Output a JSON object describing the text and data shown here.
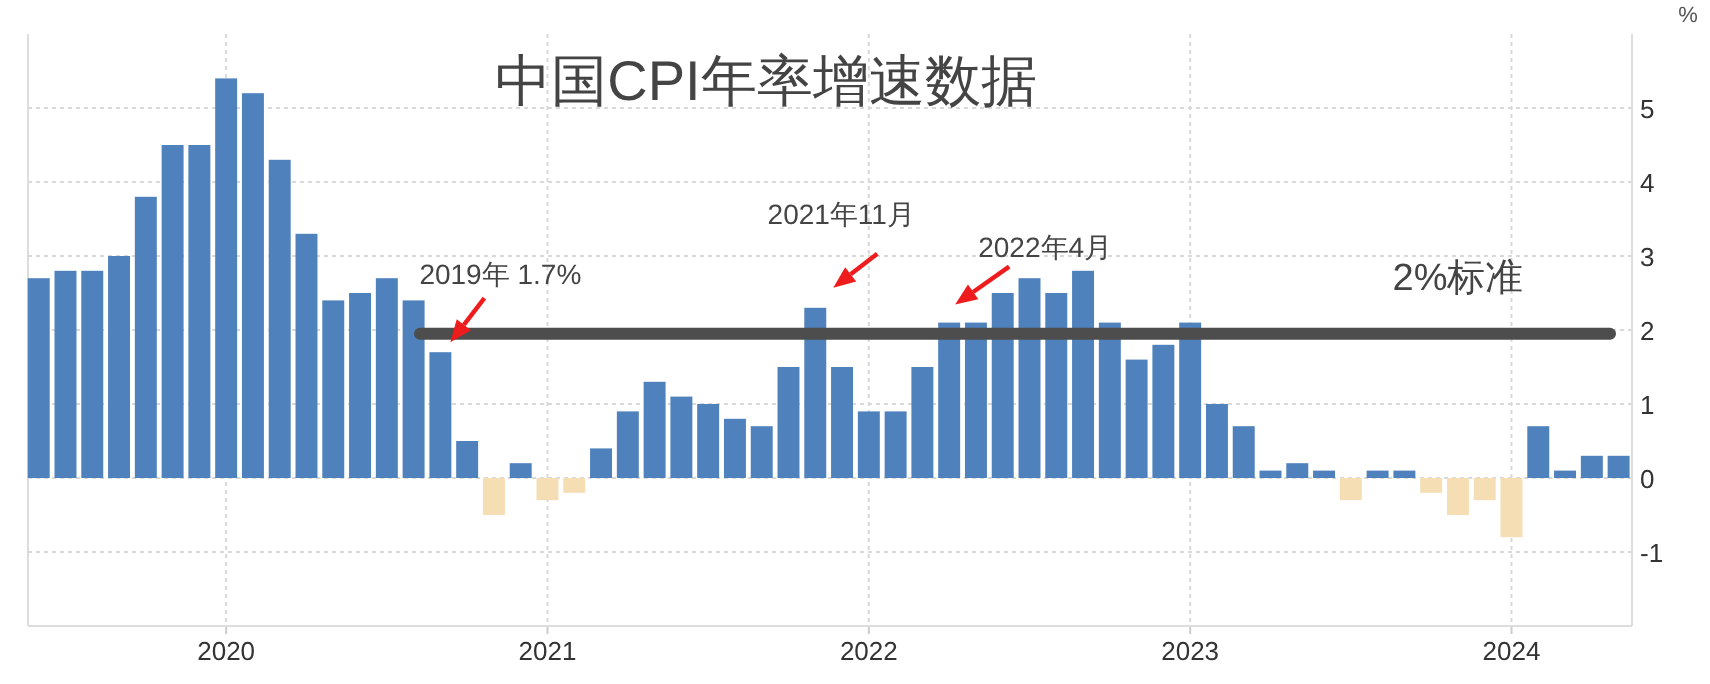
{
  "chart_data": {
    "type": "bar",
    "title": "中国CPI年率增速数据",
    "ylabel": "%",
    "x": [
      "2019-06",
      "2019-07",
      "2019-08",
      "2019-09",
      "2019-10",
      "2019-11",
      "2019-12",
      "2020-01",
      "2020-02",
      "2020-03",
      "2020-04",
      "2020-05",
      "2020-06",
      "2020-07",
      "2020-08",
      "2020-09",
      "2020-10",
      "2020-11",
      "2020-12",
      "2021-01",
      "2021-02",
      "2021-03",
      "2021-04",
      "2021-05",
      "2021-06",
      "2021-07",
      "2021-08",
      "2021-09",
      "2021-10",
      "2021-11",
      "2021-12",
      "2022-01",
      "2022-02",
      "2022-03",
      "2022-04",
      "2022-05",
      "2022-06",
      "2022-07",
      "2022-08",
      "2022-09",
      "2022-10",
      "2022-11",
      "2022-12",
      "2023-01",
      "2023-02",
      "2023-03",
      "2023-04",
      "2023-05",
      "2023-06",
      "2023-07",
      "2023-08",
      "2023-09",
      "2023-10",
      "2023-11",
      "2023-12",
      "2024-01",
      "2024-02",
      "2024-03",
      "2024-04",
      "2024-05"
    ],
    "values": [
      2.7,
      2.8,
      2.8,
      3.0,
      3.8,
      4.5,
      4.5,
      5.4,
      5.2,
      4.3,
      3.3,
      2.4,
      2.5,
      2.7,
      2.4,
      1.7,
      0.5,
      -0.5,
      0.2,
      -0.3,
      -0.2,
      0.4,
      0.9,
      1.3,
      1.1,
      1.0,
      0.8,
      0.7,
      1.5,
      2.3,
      1.5,
      0.9,
      0.9,
      1.5,
      2.1,
      2.1,
      2.5,
      2.7,
      2.5,
      2.8,
      2.1,
      1.6,
      1.8,
      2.1,
      1.0,
      0.7,
      0.1,
      0.2,
      0.1,
      -0.3,
      0.1,
      0.1,
      -0.2,
      -0.5,
      -0.3,
      -0.8,
      0.7,
      0.1,
      0.3,
      0.3
    ],
    "colors": [
      "#4f81bd",
      "#4f81bd",
      "#4f81bd",
      "#4f81bd",
      "#4f81bd",
      "#4f81bd",
      "#4f81bd",
      "#4f81bd",
      "#4f81bd",
      "#4f81bd",
      "#4f81bd",
      "#4f81bd",
      "#4f81bd",
      "#4f81bd",
      "#4f81bd",
      "#4f81bd",
      "#4f81bd",
      "#f5deb3",
      "#4f81bd",
      "#f5deb3",
      "#f5deb3",
      "#4f81bd",
      "#4f81bd",
      "#4f81bd",
      "#4f81bd",
      "#4f81bd",
      "#4f81bd",
      "#4f81bd",
      "#4f81bd",
      "#4f81bd",
      "#4f81bd",
      "#4f81bd",
      "#4f81bd",
      "#4f81bd",
      "#4f81bd",
      "#4f81bd",
      "#4f81bd",
      "#4f81bd",
      "#4f81bd",
      "#4f81bd",
      "#4f81bd",
      "#4f81bd",
      "#4f81bd",
      "#4f81bd",
      "#4f81bd",
      "#4f81bd",
      "#4f81bd",
      "#4f81bd",
      "#4f81bd",
      "#f5deb3",
      "#4f81bd",
      "#4f81bd",
      "#f5deb3",
      "#f5deb3",
      "#f5deb3",
      "#f5deb3",
      "#4f81bd",
      "#4f81bd",
      "#4f81bd",
      "#4f81bd"
    ],
    "xlim": [
      "2019-05-19",
      "2024-05-16"
    ],
    "xticks": [
      {
        "value": "2020-01",
        "label": "2020"
      },
      {
        "value": "2021-01",
        "label": "2021"
      },
      {
        "value": "2022-01",
        "label": "2022"
      },
      {
        "value": "2023-01",
        "label": "2023"
      },
      {
        "value": "2024-01",
        "label": "2024"
      }
    ],
    "ylim": [
      -2,
      6
    ],
    "yticks": [
      -1,
      0,
      1,
      2,
      3,
      4,
      5
    ],
    "grid": true,
    "ref_lines": [
      {
        "axis": "y",
        "value": 1.95,
        "label": "2%标准",
        "color": "#4d4d4d"
      }
    ],
    "annotations": [
      {
        "text": "2019年 1.7%",
        "x": "2020-09",
        "y": 1.7
      },
      {
        "text": "2021年11月",
        "x": "2021-11",
        "y": 2.3
      },
      {
        "text": "2022年4月",
        "x": "2022-04",
        "y": 2.1
      }
    ]
  }
}
